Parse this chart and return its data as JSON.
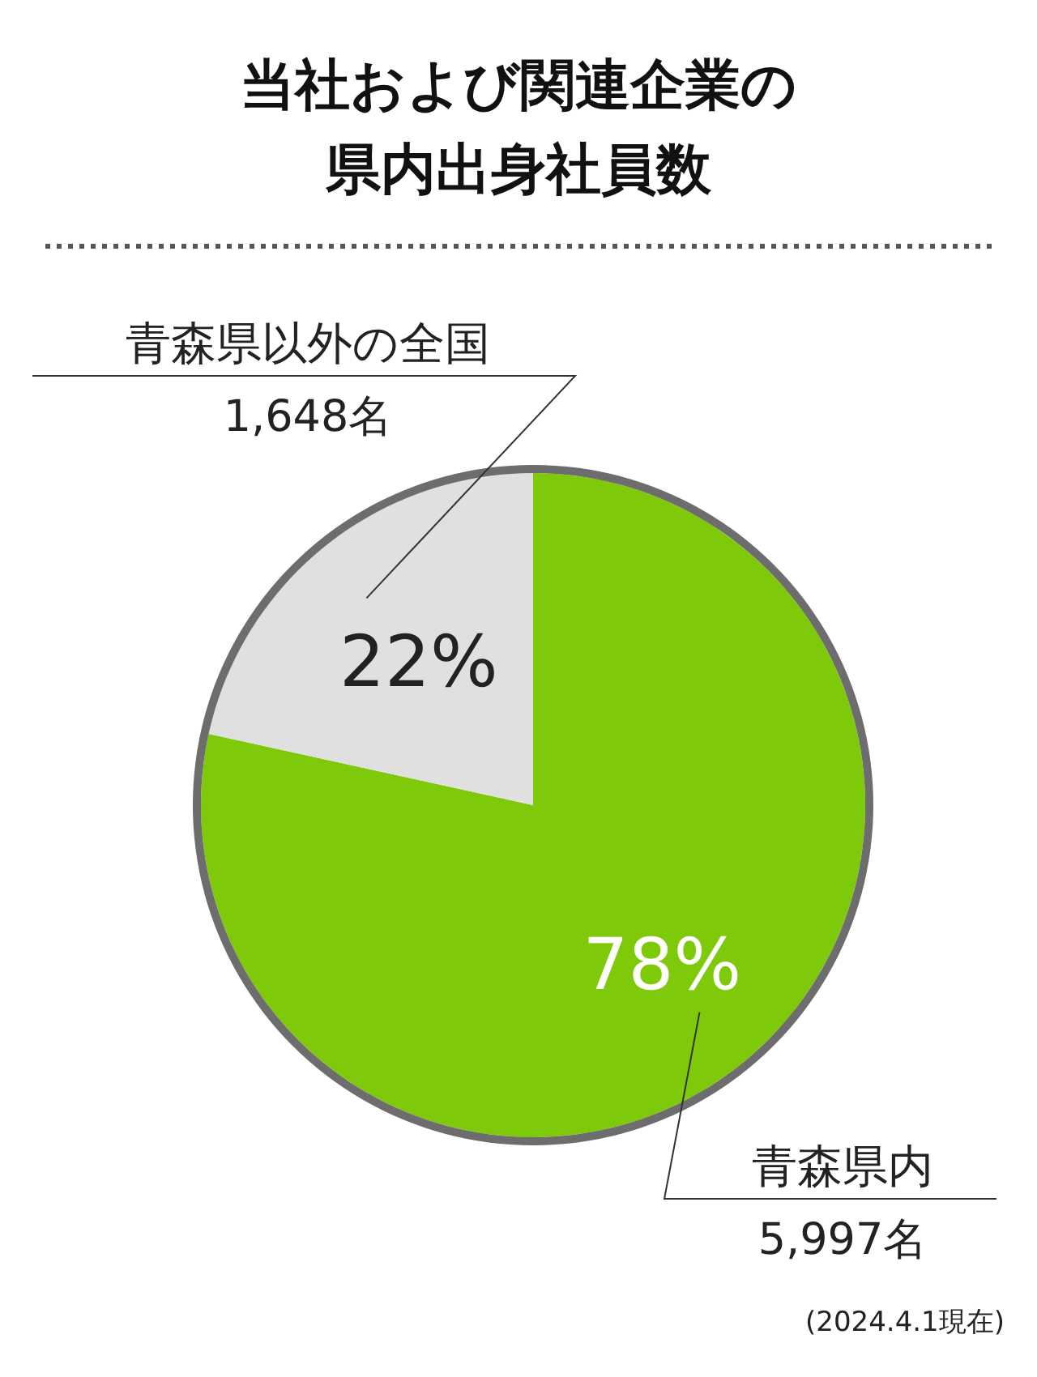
{
  "chart_data": {
    "type": "pie",
    "title": "当社および関連企業の県内出身社員数",
    "categories": [
      "青森県内",
      "青森県以外の全国"
    ],
    "values": [
      5997,
      1648
    ],
    "value_labels": [
      "5,997名",
      "1,648名"
    ],
    "colors": [
      "#7dc90a",
      "#e0e0e0"
    ],
    "annotations": [
      "78%",
      "22%",
      "(2024.4.1現在)"
    ]
  }
}
